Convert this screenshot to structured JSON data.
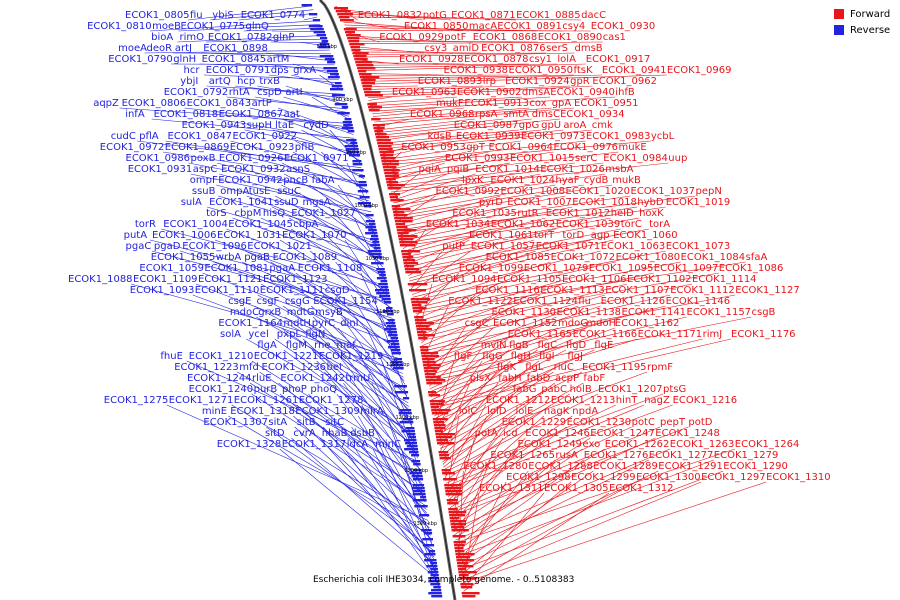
{
  "legend": {
    "items": [
      {
        "label": "Forward",
        "color": "#e8151b"
      },
      {
        "label": "Reverse",
        "color": "#2222e0"
      }
    ]
  },
  "caption": "Escherichia coli IHE3034, complete genome. - 0..5108383",
  "ruler_labels": [
    "850 kbp",
    "900 kbp",
    "950 kbp",
    "1000 kbp",
    "1050 kbp",
    "1100 kbp",
    "1150 kbp",
    "1200 kbp",
    "1250 kbp",
    "1300 kbp"
  ],
  "colors": {
    "forward": "#e8151b",
    "reverse": "#2222e0",
    "backbone": "#666666"
  },
  "reverse_labels": [
    "ECOK1_0805",
    "fiu",
    "ybiS",
    "ECOK1_0774",
    "ECOK1_0810",
    "moeB",
    "ECOK1_0775",
    "glnQ",
    "bioA",
    "rimO",
    "ECOK1_0782",
    "glnP",
    "moeA",
    "deoR",
    "artJ",
    "ECOK1_0898",
    "ECOK1_0790",
    "glnH",
    "ECOK1_0845",
    "artM",
    "hcr",
    "ECOK1_0791",
    "dps",
    "grxA",
    "ybjI",
    "artQ",
    "hcp",
    "trxB",
    "ECOK1_0792",
    "rhtA",
    "cspD",
    "artI",
    "aqpZ",
    "ECOK1_0806",
    "ECOK1_0843",
    "artP",
    "infA",
    "ECOK1_0818",
    "ECOK1_0867",
    "aat",
    "ECOK1_0943",
    "supH",
    "ltaE",
    "cydD",
    "cudC",
    "pflA",
    "ECOK1_0847",
    "ECOK1_0922",
    "ECOK1_0972",
    "ECOK1_0869",
    "ECOK1_0923",
    "pflB",
    "ECOK1_0986",
    "poxB",
    "ECOK1_0926",
    "ECOK1_0971",
    "ECOK1_0931",
    "aspC",
    "ECOK1_0932",
    "asnS",
    "ompF",
    "ECOK1_0942",
    "pncB",
    "fabA",
    "ssuB",
    "ompA",
    "tusE",
    "ssuC",
    "sulA",
    "ECOK1_1041",
    "ssuD",
    "mgsA",
    "torS",
    "cbpM",
    "hisQ",
    "ECOK1_1027",
    "torR",
    "ECOK1_1004",
    "ECOK1_1045",
    "cbpA",
    "putA",
    "ECOK1_1006",
    "ECOK1_1031",
    "ECOK1_1070",
    "pgaC",
    "pgaD",
    "ECOK1_1096",
    "ECOK1_1021",
    "ECOK1_1055",
    "wrbA",
    "pgaB",
    "ECOK1_1089",
    "ECOK1_1059",
    "ECOK1_1081",
    "pgaA",
    "ECOK1_1108",
    "ECOK1_1088",
    "ECOK1_1109",
    "ECOK1_1121",
    "ECOK1_1123",
    "ECOK1_1093",
    "ECOK1_1110",
    "ECOK1_1111",
    "csgD",
    "csgE",
    "csgF",
    "csgG",
    "ECOK1_1154",
    "mdoC",
    "grxB",
    "mdtG",
    "msyB",
    "ECOK1_1164",
    "mdtH",
    "pyrC",
    "dinI",
    "solA",
    "ycel",
    "pxpL",
    "flgN",
    "flgA",
    "flgM",
    "rne",
    "maf",
    "fhuE",
    "ECOK1_1210",
    "ECOK1_1221",
    "ECOK1_1219",
    "ECOK1_1223",
    "mfd",
    "ECOK1_1236",
    "bet",
    "ECOK1_1244",
    "rluE",
    "ECOK1_1242",
    "trmU",
    "ECOK1_1240",
    "purB",
    "phoP",
    "phoQ",
    "ECOK1_1275",
    "ECOK1_1271",
    "ECOK1_1261",
    "ECOK1_1278",
    "minE",
    "ECOK1_1318",
    "ECOK1_1309",
    "mlrA",
    "ECOK1_1307",
    "sitA",
    "sitB",
    "sitC",
    "sitD",
    "cvrA",
    "nhaB",
    "dsbB",
    "ECOK1_1328",
    "ECOK1_1317",
    "ldcA",
    "minC"
  ],
  "forward_labels": [
    "ECOK1_0832",
    "potG",
    "ECOK1_0871",
    "ECOK1_0885",
    "dacC",
    "ECOK1_0850",
    "macA",
    "ECOK1_0891",
    "csy4",
    "ECOK1_0930",
    "ECOK1_0929",
    "potF",
    "ECOK1_0868",
    "ECOK1_0890",
    "cas1",
    "csy3",
    "amiD",
    "ECOK1_0876",
    "serS",
    "dmsB",
    "ECOK1_0928",
    "ECOK1_0878",
    "csy1",
    "lolA",
    "ECOK1_0917",
    "ECOK1_0938",
    "ECOK1_0950",
    "ftsK",
    "ECOK1_0941",
    "ECOK1_0969",
    "ECOK1_0893",
    "lrp",
    "ECOK1_0924",
    "gpR",
    "ECOK1_0962",
    "ECOK1_0963",
    "ECOK1_0902",
    "dmsA",
    "ECOK1_0940",
    "ihfB",
    "mukF",
    "ECOK1_0913",
    "cox",
    "gpA",
    "ECOK1_0951",
    "ECOK1_0968",
    "rpsA",
    "smtA",
    "dmsC",
    "ECOK1_0934",
    "ECOK1_0987",
    "gpG",
    "gpU",
    "aroA",
    "cmk",
    "kdsB",
    "ECOK1_0939",
    "ECOK1_0973",
    "ECOK1_0983",
    "ycbL",
    "ECOK1_0953",
    "gpT",
    "ECOK1_0964",
    "ECOK1_0976",
    "mukE",
    "ECOK1_0993",
    "ECOK1_1015",
    "serC",
    "ECOK1_0984",
    "uup",
    "pqiA",
    "pqiB",
    "ECOK1_1014",
    "ECOK1_1026",
    "msbA",
    "lpxK",
    "ECOK1_1024",
    "hyaF",
    "cydB",
    "mukB",
    "ECOK1_0992",
    "ECOK1_1008",
    "ECOK1_1020",
    "ECOK1_1037",
    "pepN",
    "pyrD",
    "ECOK1_1007",
    "ECOK1_1018",
    "hybD",
    "ECOK1_1019",
    "ECOK1_1035",
    "rutR",
    "ECOK1_1012",
    "heID",
    "hoxK",
    "ECOK1_1034",
    "ECOK1_1062",
    "ECOK1_1039",
    "torC",
    "torA",
    "ECOK1_1061",
    "torT",
    "torD",
    "agp",
    "ECOK1_1060",
    "putP",
    "ECOK1_1057",
    "ECOK1_1071",
    "ECOK1_1063",
    "ECOK1_1073",
    "ECOK1_1085",
    "ECOK1_1072",
    "ECOK1_1080",
    "ECOK1_1084",
    "sfaA",
    "ECOK1_1099",
    "ECOK1_1079",
    "ECOK1_1095",
    "ECOK1_1097",
    "ECOK1_1086",
    "ECOK1_1094",
    "ECOK1_1105",
    "ECOK1_1106",
    "ECOK1_1102",
    "ECOK1_1114",
    "ECOK1_1116",
    "ECOK1_1113",
    "ECOK1_1107",
    "ECOK1_1112",
    "ECOK1_1127",
    "ECOK1_1122",
    "ECOK1_1124",
    "flu",
    "ECOK1_1126",
    "ECOK1_1146",
    "ECOK1_1130",
    "ECOK1_1138",
    "ECOK1_1141",
    "ECOK1_1157",
    "csgB",
    "csgC",
    "ECOK1_1152",
    "mdoG",
    "mdoH",
    "ECOK1_1162",
    "ECOK1_1165",
    "ECOK1_1166",
    "ECOK1_1171",
    "rimJ",
    "ECOK1_1176",
    "mviN",
    "flgB",
    "flgC",
    "flgD",
    "flgE",
    "flgF",
    "flgG",
    "flgH",
    "flgI",
    "flgJ",
    "flgK",
    "flgL",
    "rluC",
    "ECOK1_1195",
    "rpmF",
    "plsX",
    "fabH",
    "fabD",
    "acpP",
    "fabF",
    "fabG",
    "pabC",
    "holB",
    "ECOK1_1207",
    "ptsG",
    "ECOK1_1212",
    "ECOK1_1213",
    "hinT",
    "nagZ",
    "ECOK1_1216",
    "lolC",
    "lolD",
    "lolE",
    "nagK",
    "npdA",
    "ECOK1_1229",
    "ECOK1_1230",
    "potC",
    "pepT",
    "potD",
    "potA",
    "icd",
    "ECOK1_1246",
    "ECOK1_1247",
    "ECOK1_1248",
    "ECOK1_1249",
    "exo",
    "ECOK1_1262",
    "ECOK1_1263",
    "ECOK1_1264",
    "ECOK1_1265",
    "rusA",
    "ECOK1_1276",
    "ECOK1_1277",
    "ECOK1_1279",
    "ECOK1_1280",
    "ECOK1_1288",
    "ECOK1_1289",
    "ECOK1_1291",
    "ECOK1_1290",
    "ECOK1_1298",
    "ECOK1_1299",
    "ECOK1_1300",
    "ECOK1_1297",
    "ECOK1_1310",
    "ECOK1_1311",
    "ECOK1_1305",
    "ECOK1_1312"
  ]
}
